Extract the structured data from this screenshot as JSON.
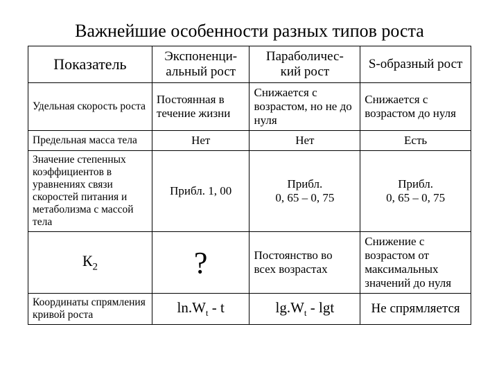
{
  "title": "Важнейшие особенности разных типов роста",
  "headers": {
    "indicator": "Показатель",
    "exp": "Экспоненци-\nальный рост",
    "par": "Параболичес-\nкий рост",
    "s": "S-образный рост"
  },
  "rows": {
    "r1": {
      "label": "Удельная скорость роста",
      "exp": "Постоянная в течение жизни",
      "par": "Снижается с возрастом, но не до нуля",
      "s": "Снижается с возрастом до нуля"
    },
    "r2": {
      "label": "Предельная масса тела",
      "exp": "Нет",
      "par": "Нет",
      "s": "Есть"
    },
    "r3": {
      "label": "Значение степенных коэффициентов в уравнениях связи скоростей питания и метаболизма с массой тела",
      "exp": "Прибл. 1, 00",
      "par": "Прибл.\n0, 65 – 0, 75",
      "s": "Прибл.\n0, 65 – 0, 75"
    },
    "r4": {
      "label_k": "К",
      "label_sub": "2",
      "exp": "?",
      "par": "Постоянство во всех возрастах",
      "s": "Снижение с возрастом от максимальных значений до нуля"
    },
    "r5": {
      "label": "Координаты спрямления кривой роста",
      "exp_a": "ln.W",
      "exp_b": "t",
      "exp_c": " - t",
      "par_a": "lg.W",
      "par_b": "t",
      "par_c": " - lgt",
      "s": "Не спрямляется"
    }
  }
}
